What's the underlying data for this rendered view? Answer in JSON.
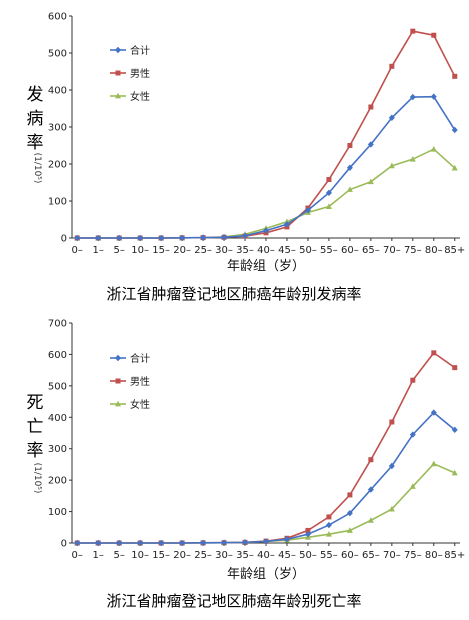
{
  "colors": {
    "total": "#4472C4",
    "male": "#C0504D",
    "female": "#9BBB59"
  },
  "chart_data": [
    {
      "type": "line",
      "title": "浙江省肿瘤登记地区肺癌年龄别发病率",
      "xlabel": "年龄组（岁）",
      "ylabel_main": "发病率",
      "ylabel_unit": "(1/10⁵)",
      "ylim": [
        0,
        600
      ],
      "yticks": [
        0,
        100,
        200,
        300,
        400,
        500,
        600
      ],
      "legend_position": "top-left",
      "grid": false,
      "categories": [
        "0–",
        "1–",
        "5–",
        "10–",
        "15–",
        "20–",
        "25–",
        "30–",
        "35–",
        "40–",
        "45–",
        "50–",
        "55–",
        "60–",
        "65–",
        "70–",
        "75–",
        "80–",
        "85+"
      ],
      "series": [
        {
          "name": "合计",
          "color_key": "total",
          "marker": "diamond",
          "values": [
            0,
            0,
            0,
            0,
            0,
            0.5,
            1,
            2,
            6,
            20,
            37,
            75,
            122,
            190,
            253,
            325,
            381,
            382,
            292
          ]
        },
        {
          "name": "男性",
          "color_key": "male",
          "marker": "square",
          "values": [
            0,
            0,
            0,
            0,
            0,
            0.5,
            1,
            2,
            5,
            14,
            30,
            81,
            158,
            250,
            354,
            464,
            559,
            548,
            437
          ]
        },
        {
          "name": "女性",
          "color_key": "female",
          "marker": "triangle",
          "values": [
            0,
            0,
            0,
            0,
            0,
            0.5,
            1,
            3,
            10,
            26,
            44,
            69,
            85,
            131,
            152,
            195,
            213,
            240,
            189
          ]
        }
      ]
    },
    {
      "type": "line",
      "title": "浙江省肿瘤登记地区肺癌年龄别死亡率",
      "xlabel": "年龄组（岁）",
      "ylabel_main": "死亡率",
      "ylabel_unit": "(1/10⁵)",
      "ylim": [
        0,
        700
      ],
      "yticks": [
        0,
        100,
        200,
        300,
        400,
        500,
        600,
        700
      ],
      "legend_position": "top-left",
      "grid": false,
      "categories": [
        "0–",
        "1–",
        "5–",
        "10–",
        "15–",
        "20–",
        "25–",
        "30–",
        "35–",
        "40–",
        "45–",
        "50–",
        "55–",
        "60–",
        "65–",
        "70–",
        "75–",
        "80–",
        "85+"
      ],
      "series": [
        {
          "name": "合计",
          "color_key": "total",
          "marker": "diamond",
          "values": [
            0,
            0,
            0,
            0,
            0,
            0,
            0.5,
            1,
            2,
            5,
            12,
            28,
            57,
            95,
            170,
            245,
            345,
            415,
            360
          ]
        },
        {
          "name": "男性",
          "color_key": "male",
          "marker": "square",
          "values": [
            0,
            0,
            0,
            0,
            0,
            0,
            0.5,
            1,
            2,
            6,
            15,
            40,
            83,
            153,
            265,
            385,
            518,
            605,
            558
          ]
        },
        {
          "name": "女性",
          "color_key": "female",
          "marker": "triangle",
          "values": [
            0,
            0,
            0,
            0,
            0,
            0,
            0.5,
            1,
            2,
            5,
            9,
            18,
            28,
            40,
            72,
            108,
            180,
            252,
            223
          ]
        }
      ]
    }
  ]
}
